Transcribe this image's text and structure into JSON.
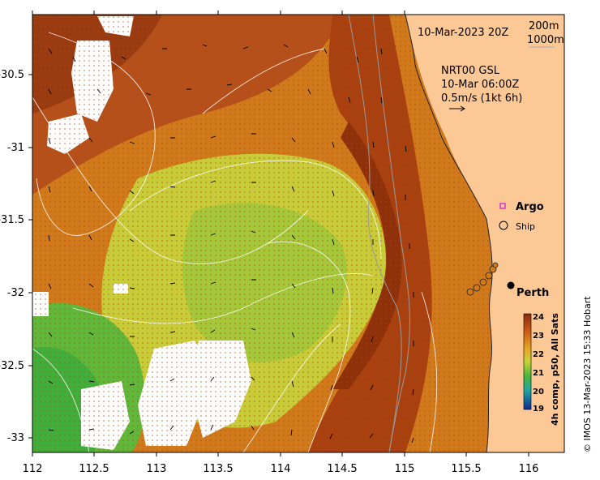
{
  "map": {
    "date_label": "10-Mar-2023 20Z",
    "contour_legend": [
      "200m",
      "1000m"
    ],
    "current_source": "NRT00 GSL",
    "current_time": "10-Mar 06:00Z",
    "vector_scale": "0.5m/s (1kt 6h)",
    "legend_argo": "Argo",
    "legend_ship": "Ship",
    "city": "Perth",
    "colorbar_title": "4h comp, p50, All Sats",
    "credit": "© IMOS 13-Mar-2023 15:33 Hobart",
    "colors": {
      "land": "#fbc896",
      "warm": "#a63a12",
      "mid": "#d7881a",
      "cool": "#c8d43a",
      "cold": "#3fae3a",
      "argo": "#d020d0"
    }
  },
  "chart_data": {
    "type": "heatmap",
    "x_ticks": [
      "112",
      "112.5",
      "113",
      "113.5",
      "114",
      "114.5",
      "115",
      "115.5",
      "116"
    ],
    "y_ticks": [
      "-30.5",
      "-31",
      "-31.5",
      "-32",
      "-32.5",
      "-33"
    ],
    "xlim": [
      112,
      116.3
    ],
    "ylim": [
      -33.1,
      -30.05
    ],
    "colorbar": {
      "ticks": [
        "24",
        "23",
        "22",
        "21",
        "20",
        "19"
      ],
      "range": [
        19,
        24
      ]
    },
    "ship_track": [
      [
        115.55,
        -32.0
      ],
      [
        115.6,
        -31.98
      ],
      [
        115.65,
        -31.95
      ],
      [
        115.7,
        -31.9
      ],
      [
        115.73,
        -31.85
      ]
    ],
    "city_point": [
      115.86,
      -31.95
    ]
  }
}
